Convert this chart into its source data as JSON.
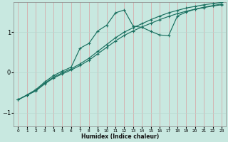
{
  "background_color": "#c8e8e0",
  "grid_color_v": "#d8a0a0",
  "grid_color_h": "#b8d8d0",
  "line_color": "#1a7060",
  "xlabel": "Humidex (Indice chaleur)",
  "xlim": [
    -0.5,
    23.5
  ],
  "ylim": [
    -1.35,
    1.75
  ],
  "yticks": [
    -1,
    0,
    1
  ],
  "xticks": [
    0,
    1,
    2,
    3,
    4,
    5,
    6,
    7,
    8,
    9,
    10,
    11,
    12,
    13,
    14,
    15,
    16,
    17,
    18,
    19,
    20,
    21,
    22,
    23
  ],
  "line1_x": [
    0,
    1,
    2,
    3,
    4,
    5,
    6,
    7,
    8,
    9,
    10,
    11,
    12,
    13,
    14,
    15,
    16,
    17,
    18,
    19,
    20,
    21,
    22,
    23
  ],
  "line1_y": [
    -0.68,
    -0.57,
    -0.46,
    -0.29,
    -0.14,
    -0.04,
    0.06,
    0.17,
    0.3,
    0.46,
    0.62,
    0.78,
    0.92,
    1.03,
    1.13,
    1.22,
    1.31,
    1.39,
    1.46,
    1.52,
    1.57,
    1.61,
    1.65,
    1.68
  ],
  "line2_x": [
    0,
    1,
    2,
    3,
    4,
    5,
    6,
    7,
    8,
    9,
    10,
    11,
    12,
    13,
    14,
    15,
    16,
    17,
    18,
    19,
    20,
    21,
    22,
    23
  ],
  "line2_y": [
    -0.68,
    -0.57,
    -0.45,
    -0.27,
    -0.12,
    -0.01,
    0.09,
    0.21,
    0.35,
    0.52,
    0.69,
    0.86,
    1.0,
    1.11,
    1.21,
    1.31,
    1.4,
    1.48,
    1.54,
    1.6,
    1.64,
    1.68,
    1.71,
    1.74
  ],
  "line3_x": [
    0,
    1,
    2,
    3,
    4,
    5,
    6,
    7,
    8,
    9,
    10,
    11,
    12,
    13,
    14,
    15,
    16,
    17,
    18,
    19,
    20,
    21,
    22,
    23
  ],
  "line3_y": [
    -0.68,
    -0.56,
    -0.43,
    -0.24,
    -0.08,
    0.03,
    0.13,
    0.6,
    0.72,
    1.03,
    1.17,
    1.48,
    1.55,
    1.15,
    1.12,
    1.02,
    0.93,
    0.91,
    1.4,
    1.5,
    1.57,
    1.62,
    1.66,
    1.7
  ]
}
